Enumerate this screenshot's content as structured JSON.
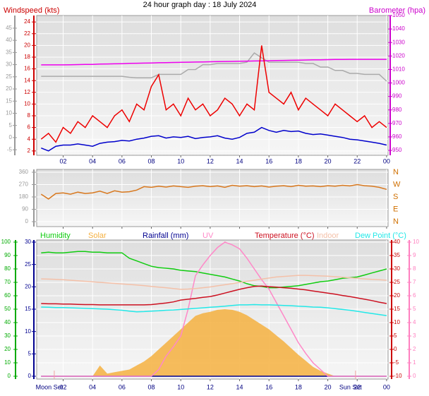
{
  "chart_data": [
    {
      "type": "line",
      "title": "24 hour graph day : 18 July 2024",
      "ylabel": "Windspeed (kts)",
      "y2label": "Barometer (hpa)",
      "x": [
        0.5,
        1,
        1.5,
        2,
        2.5,
        3,
        3.5,
        4,
        4.5,
        5,
        5.5,
        6,
        6.5,
        7,
        7.5,
        8,
        8.5,
        9,
        9.5,
        10,
        10.5,
        11,
        11.5,
        12,
        12.5,
        13,
        13.5,
        14,
        14.5,
        15,
        15.5,
        16,
        16.5,
        17,
        17.5,
        18,
        18.5,
        19,
        19.5,
        20,
        20.5,
        21,
        21.5,
        22,
        22.5,
        23,
        23.5,
        24
      ],
      "xlim": [
        0.2,
        24.1
      ],
      "xticks": [
        {
          "value": 2,
          "label": "02"
        },
        {
          "value": 4,
          "label": "04"
        },
        {
          "value": 6,
          "label": "06"
        },
        {
          "value": 8,
          "label": "08"
        },
        10,
        12,
        14,
        16,
        18,
        20,
        22,
        {
          "value": 24,
          "label": "00"
        }
      ],
      "ylim": [
        1.5,
        25.1
      ],
      "yticks": [
        2,
        4,
        6,
        8,
        10,
        12,
        14,
        16,
        18,
        20,
        22,
        24
      ],
      "y2lim": [
        947.4,
        1050
      ],
      "y2ticks": [
        950,
        960,
        970,
        980,
        990,
        1000,
        1010,
        1020,
        1030,
        1040,
        1050
      ],
      "y3lim": [
        -6.7,
        50.2
      ],
      "y3ticks": [
        -5,
        0,
        5,
        10,
        15,
        20,
        25,
        30,
        35,
        40,
        45
      ],
      "grid": true,
      "series": [
        {
          "color": "#aaaaaa",
          "axis": "y3",
          "values": [
            25.2,
            25.2,
            25.2,
            25.2,
            25.2,
            25.2,
            25.2,
            25.2,
            25.2,
            25.2,
            25.2,
            25.2,
            24.8,
            24.6,
            24.6,
            24.6,
            26,
            26,
            26,
            26,
            28,
            28,
            30,
            30,
            30.5,
            30.5,
            30.5,
            30.5,
            31,
            34.8,
            32.8,
            31,
            31,
            31,
            31,
            31,
            30.5,
            30.5,
            29,
            29,
            27.6,
            27.6,
            26.4,
            26.4,
            26,
            26,
            26,
            23.2
          ]
        },
        {
          "color": "#ee00ee",
          "axis": "y2",
          "values": [
            1013.4,
            1013.4,
            1013.4,
            1013.4,
            1013.5,
            1013.6,
            1013.7,
            1013.8,
            1014,
            1014.1,
            1014.2,
            1014.3,
            1014.5,
            1014.6,
            1014.7,
            1014.8,
            1015,
            1015.1,
            1015.2,
            1015.3,
            1015.4,
            1015.5,
            1015.6,
            1015.7,
            1015.8,
            1015.9,
            1016,
            1016.1,
            1016.2,
            1016.3,
            1016.4,
            1016.5,
            1016.6,
            1016.7,
            1016.8,
            1016.9,
            1017,
            1017.1,
            1017.2,
            1017.3,
            1017.4,
            1017.4,
            1017.5,
            1017.5,
            1017.5,
            1017.5,
            1017.5,
            1017.5
          ]
        },
        {
          "color": "#ee0000",
          "axis": "y",
          "values": [
            4,
            5,
            3.5,
            6,
            5,
            7,
            6,
            8,
            7,
            6,
            8,
            9,
            7,
            10,
            9,
            13,
            15,
            9,
            10,
            8,
            11,
            9,
            10,
            8,
            9,
            11,
            10,
            8,
            10,
            9,
            20,
            12,
            11,
            10,
            12,
            9,
            11,
            10,
            9,
            8,
            10,
            9,
            8,
            7,
            8,
            6,
            7,
            6
          ]
        },
        {
          "color": "#0000cc",
          "axis": "y",
          "values": [
            2.5,
            2,
            2.8,
            3,
            3,
            3.2,
            3,
            2.8,
            3.3,
            3.5,
            3.6,
            3.8,
            3.7,
            4,
            4.2,
            4.5,
            4.6,
            4.2,
            4.4,
            4.3,
            4.5,
            4.1,
            4.3,
            4.4,
            4.6,
            4.2,
            4,
            4.3,
            5,
            5.2,
            6,
            5.5,
            5.2,
            5.5,
            5.3,
            5.4,
            5,
            4.8,
            4.9,
            4.7,
            4.5,
            4.3,
            4,
            3.9,
            3.7,
            3.5,
            3.3,
            3
          ]
        }
      ]
    },
    {
      "type": "line",
      "x": [
        0.5,
        1,
        1.5,
        2,
        2.5,
        3,
        3.5,
        4,
        4.5,
        5,
        5.5,
        6,
        6.5,
        7,
        7.5,
        8,
        8.5,
        9,
        9.5,
        10,
        10.5,
        11,
        11.5,
        12,
        12.5,
        13,
        13.5,
        14,
        14.5,
        15,
        15.5,
        16,
        16.5,
        17,
        17.5,
        18,
        18.5,
        19,
        19.5,
        20,
        20.5,
        21,
        21.5,
        22,
        22.5,
        23,
        23.5,
        24
      ],
      "xlim": [
        0.2,
        24.1
      ],
      "xticks": [
        2,
        4,
        6,
        8,
        10,
        12,
        14,
        16,
        18,
        20,
        22,
        24
      ],
      "ylim": [
        -30.9,
        380.6
      ],
      "yticks": [
        0,
        90,
        180,
        270,
        360
      ],
      "y2lim": [
        -30.9,
        380.6
      ],
      "y2ticks": [
        {
          "value": 0,
          "label": "N"
        },
        {
          "value": 90,
          "label": "E"
        },
        {
          "value": 180,
          "label": "S"
        },
        {
          "value": 270,
          "label": "W"
        },
        {
          "value": 360,
          "label": "N"
        }
      ],
      "grid": true,
      "series": [
        {
          "color": "#d8781e",
          "axis": "y",
          "values": [
            200,
            165,
            205,
            210,
            200,
            215,
            205,
            210,
            222,
            205,
            225,
            215,
            218,
            230,
            255,
            250,
            258,
            252,
            260,
            255,
            250,
            258,
            262,
            255,
            260,
            250,
            265,
            258,
            262,
            255,
            260,
            252,
            258,
            262,
            255,
            265,
            258,
            260,
            255,
            262,
            258,
            265,
            260,
            270,
            262,
            258,
            250,
            235
          ]
        }
      ]
    },
    {
      "type": "line",
      "x": [
        0.5,
        1,
        1.5,
        2,
        2.5,
        3,
        3.5,
        4,
        4.5,
        5,
        5.5,
        6,
        6.5,
        7,
        7.5,
        8,
        8.5,
        9,
        9.5,
        10,
        10.5,
        11,
        11.5,
        12,
        12.5,
        13,
        13.5,
        14,
        14.5,
        15,
        15.5,
        16,
        16.5,
        17,
        17.5,
        18,
        18.5,
        19,
        19.5,
        20,
        20.5,
        21,
        21.5,
        22,
        22.5,
        23,
        23.5,
        24
      ],
      "xlim": [
        0.2,
        24.1
      ],
      "xticks": [
        {
          "value": 2,
          "label": "02"
        },
        {
          "value": 4,
          "label": "04"
        },
        {
          "value": 6,
          "label": "06"
        },
        {
          "value": 8,
          "label": "08"
        },
        10,
        12,
        14,
        16,
        18,
        20,
        22,
        {
          "value": 24,
          "label": "00"
        }
      ],
      "ylim": [
        0,
        100
      ],
      "yticks": [
        0,
        10,
        20,
        30,
        40,
        50,
        60,
        70,
        80,
        90,
        100
      ],
      "y2lim": [
        -10,
        40
      ],
      "y2ticks": [
        -10,
        -5,
        0,
        5,
        10,
        15,
        20,
        25,
        30,
        35,
        40
      ],
      "y3lim": [
        0,
        30
      ],
      "y3ticks": [
        0,
        5,
        10,
        15,
        20,
        25,
        30
      ],
      "y4lim": [
        0,
        10
      ],
      "y4ticks": [
        0,
        1,
        2,
        3,
        4,
        5,
        6,
        7,
        8,
        9,
        10
      ],
      "grid": true,
      "events": [
        {
          "label": "Moon Set",
          "x": 1.06
        },
        {
          "label": "Sun Set",
          "x": 21.55
        }
      ],
      "series": [
        {
          "name": "Humidity",
          "color": "#11cc11",
          "axis": "y",
          "values": [
            92,
            92.5,
            92,
            92,
            92.5,
            93,
            93,
            92.5,
            92.5,
            92,
            92,
            92,
            88,
            86,
            84,
            82,
            81,
            80.5,
            80,
            79,
            78.5,
            78,
            77,
            76,
            75,
            74,
            72.5,
            71,
            69,
            67.5,
            67,
            66,
            66,
            66.5,
            67,
            67.5,
            68.5,
            69.5,
            70.5,
            71,
            72,
            73,
            73.5,
            74,
            75.5,
            77,
            78.5,
            80
          ]
        },
        {
          "name": "Solar",
          "color": "#f5b040",
          "axis": "y",
          "area": true,
          "values": [
            0,
            0,
            0,
            0,
            0,
            0,
            0,
            0,
            8,
            2,
            3,
            4,
            5,
            8,
            11,
            15,
            20,
            25,
            30,
            35,
            40,
            45,
            47,
            48,
            49.5,
            50,
            49.5,
            48,
            45.5,
            42,
            38.5,
            35,
            30.5,
            26,
            21,
            16,
            11.5,
            7,
            4,
            2,
            0,
            0,
            0,
            0,
            0,
            0,
            0,
            0
          ]
        },
        {
          "name": "Rainfall (mm)",
          "color": "#000090",
          "axis": "y3",
          "values": [
            0,
            0,
            0,
            0,
            0,
            0,
            0,
            0,
            0,
            0,
            0,
            0,
            0,
            0,
            0,
            0,
            0,
            0,
            0,
            0,
            0,
            0,
            0,
            0,
            0,
            0,
            0,
            0,
            0,
            0,
            0,
            0,
            0,
            0,
            0,
            0,
            0,
            0,
            0,
            0,
            0,
            0,
            0,
            0,
            0,
            0,
            0,
            0
          ]
        },
        {
          "name": "UV",
          "color": "#ff88c8",
          "axis": "y4",
          "values": [
            0,
            0,
            0,
            0,
            0,
            0,
            0,
            0,
            0,
            0,
            0,
            0,
            0,
            0,
            0,
            0,
            0.5,
            1.5,
            2.2,
            3,
            5,
            7.5,
            8.3,
            9,
            9.6,
            10,
            9.8,
            9.5,
            8.8,
            8,
            7.2,
            6.5,
            5.5,
            4.5,
            3.5,
            2.5,
            1.7,
            1,
            0.5,
            0,
            0,
            0,
            0,
            0,
            0,
            0,
            0,
            0
          ]
        },
        {
          "name": "Temperature (°C)",
          "color": "#cc1020",
          "axis": "y2",
          "values": [
            17.1,
            17,
            17,
            16.9,
            16.9,
            16.8,
            16.7,
            16.7,
            16.6,
            16.6,
            16.6,
            16.6,
            16.6,
            16.6,
            16.6,
            16.7,
            17,
            17.3,
            17.7,
            18.4,
            18.7,
            19,
            19.4,
            19.7,
            20.3,
            21,
            21.7,
            22.4,
            23,
            23.5,
            23.6,
            23.4,
            23.2,
            23,
            22.8,
            22.5,
            22.2,
            21.8,
            21.4,
            21,
            20.6,
            20.1,
            19.7,
            19.2,
            18.7,
            18.2,
            17.6,
            17.1
          ]
        },
        {
          "name": "Indoor",
          "color": "#f4c0a8",
          "axis": "y2",
          "values": [
            26.3,
            26.2,
            26.1,
            26,
            25.8,
            25.6,
            25.4,
            25.2,
            25,
            24.8,
            24.6,
            24.4,
            24.2,
            24,
            23.8,
            23.5,
            23.2,
            23,
            22.7,
            22.4,
            22.5,
            22.7,
            23,
            23.3,
            23.7,
            24.1,
            24.5,
            25,
            25.4,
            25.8,
            26.2,
            26.6,
            27,
            27.2,
            27.4,
            27.6,
            27.6,
            27.5,
            27.4,
            27.3,
            27.1,
            26.9,
            26.7,
            26.5,
            26.3,
            26.1,
            26,
            25.8
          ]
        },
        {
          "name": "Dew Point (°C)",
          "color": "#22e8e8",
          "axis": "y2",
          "values": [
            15.8,
            15.7,
            15.6,
            15.6,
            15.5,
            15.4,
            15.3,
            15.2,
            15.1,
            15,
            14.8,
            14.6,
            14.3,
            14,
            14.1,
            14.3,
            14.4,
            14.6,
            14.7,
            14.9,
            15.1,
            15.3,
            15.5,
            15.7,
            15.9,
            16.1,
            16.4,
            16.6,
            16.6,
            16.7,
            16.6,
            16.6,
            16.5,
            16.4,
            16.3,
            16.1,
            16,
            15.8,
            15.7,
            15.5,
            15.2,
            14.9,
            14.6,
            14.2,
            13.8,
            13.4,
            13,
            12.6
          ]
        }
      ]
    }
  ]
}
